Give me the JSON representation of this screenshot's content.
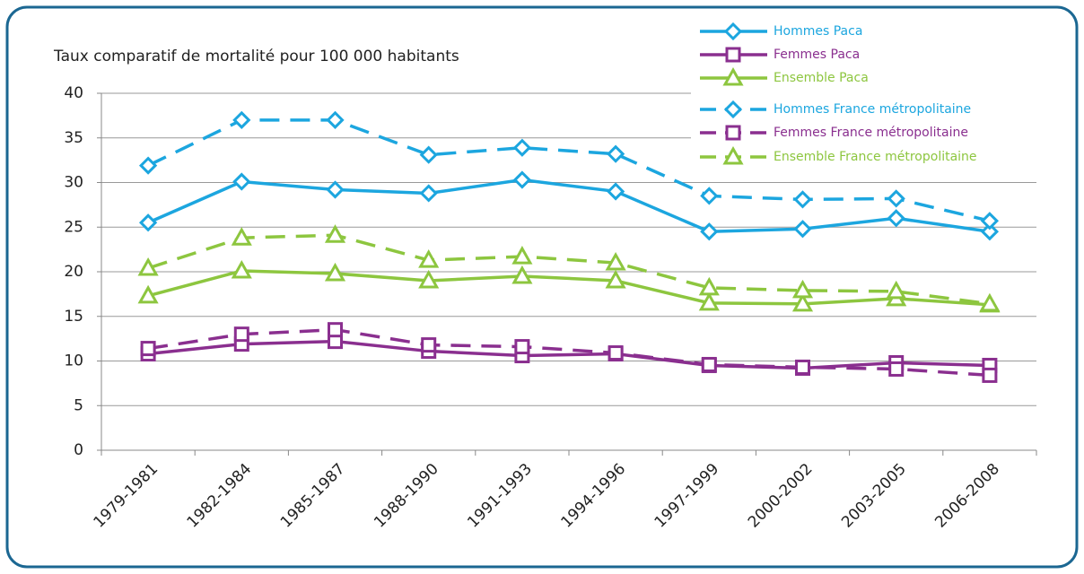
{
  "chart_data": {
    "type": "line",
    "title": "Taux comparatif de mortalité pour 100 000 habitants",
    "categories": [
      "1979-1981",
      "1982-1984",
      "1985-1987",
      "1988-1990",
      "1991-1993",
      "1994-1996",
      "1997-1999",
      "2000-2002",
      "2003-2005",
      "2006-2008"
    ],
    "ylim": [
      0,
      40
    ],
    "yticks": [
      0,
      5,
      10,
      15,
      20,
      25,
      30,
      35,
      40
    ],
    "grid": true,
    "legend": "upper right",
    "series": [
      {
        "name": "Hommes Paca",
        "color": "#1ca6df",
        "line_style": "solid",
        "marker": "diamond",
        "values": [
          25.5,
          30.1,
          29.2,
          28.8,
          30.3,
          29.0,
          24.5,
          24.8,
          26.0,
          24.5
        ]
      },
      {
        "name": "Femmes Paca",
        "color": "#8a2f8f",
        "line_style": "solid",
        "marker": "square",
        "values": [
          10.8,
          11.9,
          12.2,
          11.1,
          10.6,
          10.8,
          9.5,
          9.2,
          9.8,
          9.5
        ]
      },
      {
        "name": "Ensemble Paca",
        "color": "#8dc63f",
        "line_style": "solid",
        "marker": "triangle",
        "values": [
          17.3,
          20.1,
          19.8,
          19.0,
          19.5,
          19.0,
          16.5,
          16.4,
          17.0,
          16.3
        ]
      },
      {
        "name": "Hommes France métropolitaine",
        "color": "#1ca6df",
        "line_style": "dashed",
        "marker": "diamond",
        "values": [
          31.9,
          37.0,
          37.0,
          33.1,
          33.9,
          33.2,
          28.5,
          28.1,
          28.2,
          25.7
        ]
      },
      {
        "name": "Femmes France métropolitaine",
        "color": "#8a2f8f",
        "line_style": "dashed",
        "marker": "square",
        "values": [
          11.4,
          13.0,
          13.5,
          11.8,
          11.6,
          10.9,
          9.6,
          9.3,
          9.1,
          8.4
        ]
      },
      {
        "name": "Ensemble France métropolitaine",
        "color": "#8dc63f",
        "line_style": "dashed",
        "marker": "triangle",
        "values": [
          20.4,
          23.8,
          24.1,
          21.3,
          21.7,
          21.0,
          18.2,
          17.9,
          17.8,
          16.4
        ]
      }
    ]
  }
}
